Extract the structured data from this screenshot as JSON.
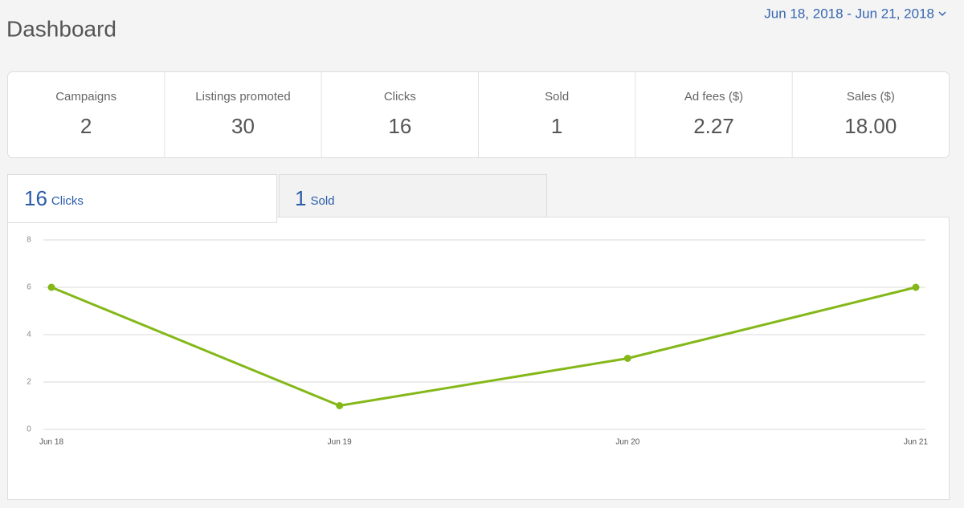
{
  "header": {
    "title": "Dashboard",
    "date_range": "Jun 18, 2018 - Jun 21, 2018"
  },
  "stats": [
    {
      "label": "Campaigns",
      "value": "2"
    },
    {
      "label": "Listings promoted",
      "value": "30"
    },
    {
      "label": "Clicks",
      "value": "16"
    },
    {
      "label": "Sold",
      "value": "1"
    },
    {
      "label": "Ad fees ($)",
      "value": "2.27"
    },
    {
      "label": "Sales ($)",
      "value": "18.00"
    }
  ],
  "tabs": [
    {
      "value": "16",
      "label": "Clicks"
    },
    {
      "value": "1",
      "label": "Sold"
    }
  ],
  "chart_data": {
    "type": "line",
    "categories": [
      "Jun 18",
      "Jun 19",
      "Jun 20",
      "Jun 21"
    ],
    "values": [
      6,
      1,
      3,
      6
    ],
    "color": "#84b819",
    "ylim": [
      0,
      8
    ],
    "yticks": [
      0,
      2,
      4,
      6,
      8
    ],
    "grid": true
  }
}
